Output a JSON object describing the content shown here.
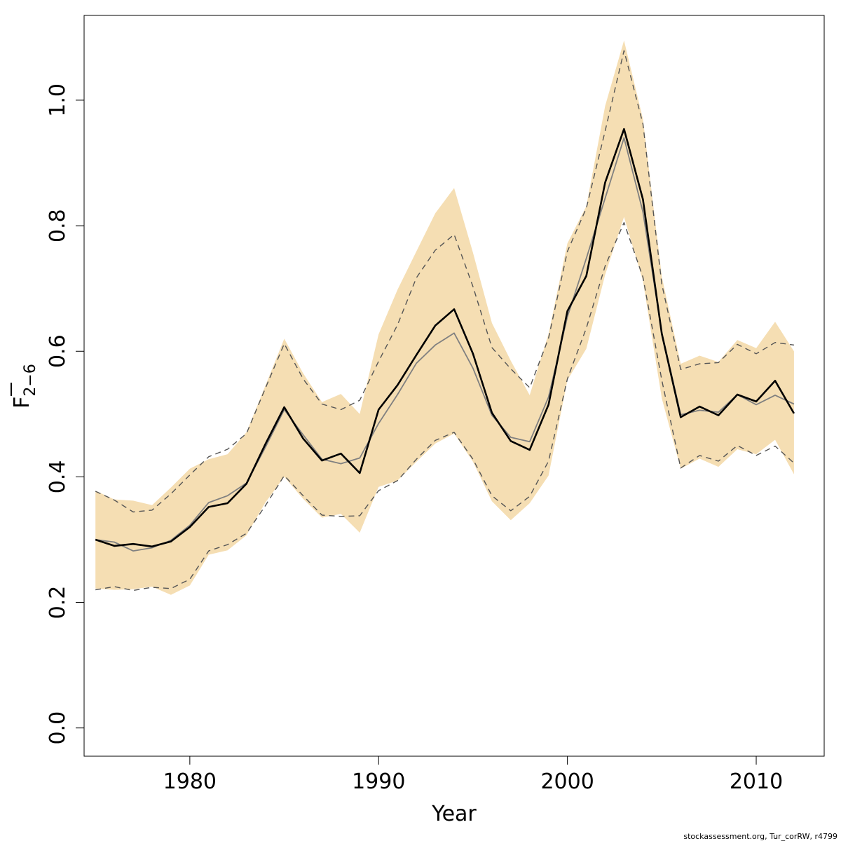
{
  "chart_data": {
    "type": "line",
    "title": "",
    "xlabel": "Year",
    "ylabel": {
      "main": "F",
      "subscript": "2−6"
    },
    "xlim": [
      1974.4,
      2013.6
    ],
    "ylim": [
      -0.045,
      1.135
    ],
    "x_ticks": [
      1980,
      1990,
      2000,
      2010
    ],
    "x_tick_labels": [
      "1980",
      "1990",
      "2000",
      "2010"
    ],
    "y_ticks": [
      0.0,
      0.2,
      0.4,
      0.6,
      0.8,
      1.0
    ],
    "y_tick_labels": [
      "0.0",
      "0.2",
      "0.4",
      "0.6",
      "0.8",
      "1.0"
    ],
    "grid": false,
    "x": [
      1975,
      1976,
      1977,
      1978,
      1979,
      1980,
      1981,
      1982,
      1983,
      1984,
      1985,
      1986,
      1987,
      1988,
      1989,
      1990,
      1991,
      1992,
      1993,
      1994,
      1995,
      1996,
      1997,
      1998,
      1999,
      2000,
      2001,
      2002,
      2003,
      2004,
      2005,
      2006,
      2007,
      2008,
      2009,
      2010,
      2011,
      2012
    ],
    "series": [
      {
        "role": "estimate",
        "color": "#000000",
        "values": [
          0.3,
          0.29,
          0.293,
          0.289,
          0.297,
          0.32,
          0.352,
          0.358,
          0.389,
          0.452,
          0.511,
          0.461,
          0.426,
          0.437,
          0.406,
          0.507,
          0.546,
          0.594,
          0.641,
          0.667,
          0.596,
          0.502,
          0.457,
          0.443,
          0.515,
          0.664,
          0.72,
          0.869,
          0.954,
          0.842,
          0.628,
          0.495,
          0.512,
          0.498,
          0.531,
          0.52,
          0.553,
          0.501
        ]
      },
      {
        "role": "comparison",
        "color": "#808080",
        "values": [
          0.3,
          0.296,
          0.282,
          0.287,
          0.299,
          0.323,
          0.359,
          0.37,
          0.39,
          0.447,
          0.507,
          0.467,
          0.428,
          0.421,
          0.43,
          0.485,
          0.531,
          0.581,
          0.61,
          0.629,
          0.573,
          0.498,
          0.463,
          0.456,
          0.527,
          0.655,
          0.748,
          0.844,
          0.94,
          0.822,
          0.63,
          0.499,
          0.506,
          0.503,
          0.531,
          0.515,
          0.53,
          0.516
        ]
      },
      {
        "role": "comparison-ci-upper",
        "color": "#555555",
        "dashed": true,
        "values": [
          0.377,
          0.363,
          0.344,
          0.347,
          0.373,
          0.403,
          0.432,
          0.444,
          0.469,
          0.541,
          0.612,
          0.556,
          0.516,
          0.507,
          0.522,
          0.584,
          0.642,
          0.717,
          0.761,
          0.786,
          0.703,
          0.606,
          0.572,
          0.542,
          0.621,
          0.759,
          0.828,
          0.951,
          1.079,
          0.962,
          0.707,
          0.571,
          0.58,
          0.582,
          0.611,
          0.596,
          0.614,
          0.61
        ]
      },
      {
        "role": "comparison-ci-lower",
        "color": "#555555",
        "dashed": true,
        "values": [
          0.22,
          0.225,
          0.219,
          0.224,
          0.222,
          0.237,
          0.282,
          0.292,
          0.31,
          0.354,
          0.402,
          0.37,
          0.339,
          0.337,
          0.338,
          0.378,
          0.394,
          0.428,
          0.458,
          0.471,
          0.428,
          0.37,
          0.346,
          0.369,
          0.425,
          0.556,
          0.637,
          0.736,
          0.805,
          0.718,
          0.554,
          0.414,
          0.434,
          0.425,
          0.45,
          0.434,
          0.449,
          0.422
        ]
      }
    ],
    "band": {
      "color": "#f5deb3",
      "upper": [
        0.378,
        0.364,
        0.362,
        0.355,
        0.383,
        0.413,
        0.428,
        0.436,
        0.471,
        0.545,
        0.62,
        0.565,
        0.519,
        0.532,
        0.5,
        0.627,
        0.698,
        0.759,
        0.82,
        0.86,
        0.757,
        0.645,
        0.585,
        0.53,
        0.628,
        0.772,
        0.831,
        0.991,
        1.095,
        0.97,
        0.719,
        0.58,
        0.593,
        0.583,
        0.618,
        0.605,
        0.647,
        0.6
      ],
      "lower": [
        0.222,
        0.22,
        0.221,
        0.225,
        0.212,
        0.227,
        0.276,
        0.283,
        0.307,
        0.359,
        0.4,
        0.365,
        0.335,
        0.341,
        0.311,
        0.384,
        0.394,
        0.424,
        0.453,
        0.469,
        0.424,
        0.361,
        0.331,
        0.358,
        0.402,
        0.554,
        0.604,
        0.722,
        0.814,
        0.712,
        0.525,
        0.413,
        0.429,
        0.416,
        0.444,
        0.436,
        0.459,
        0.404
      ]
    },
    "footer": "stockassessment.org, Tur_corRW, r4799"
  }
}
